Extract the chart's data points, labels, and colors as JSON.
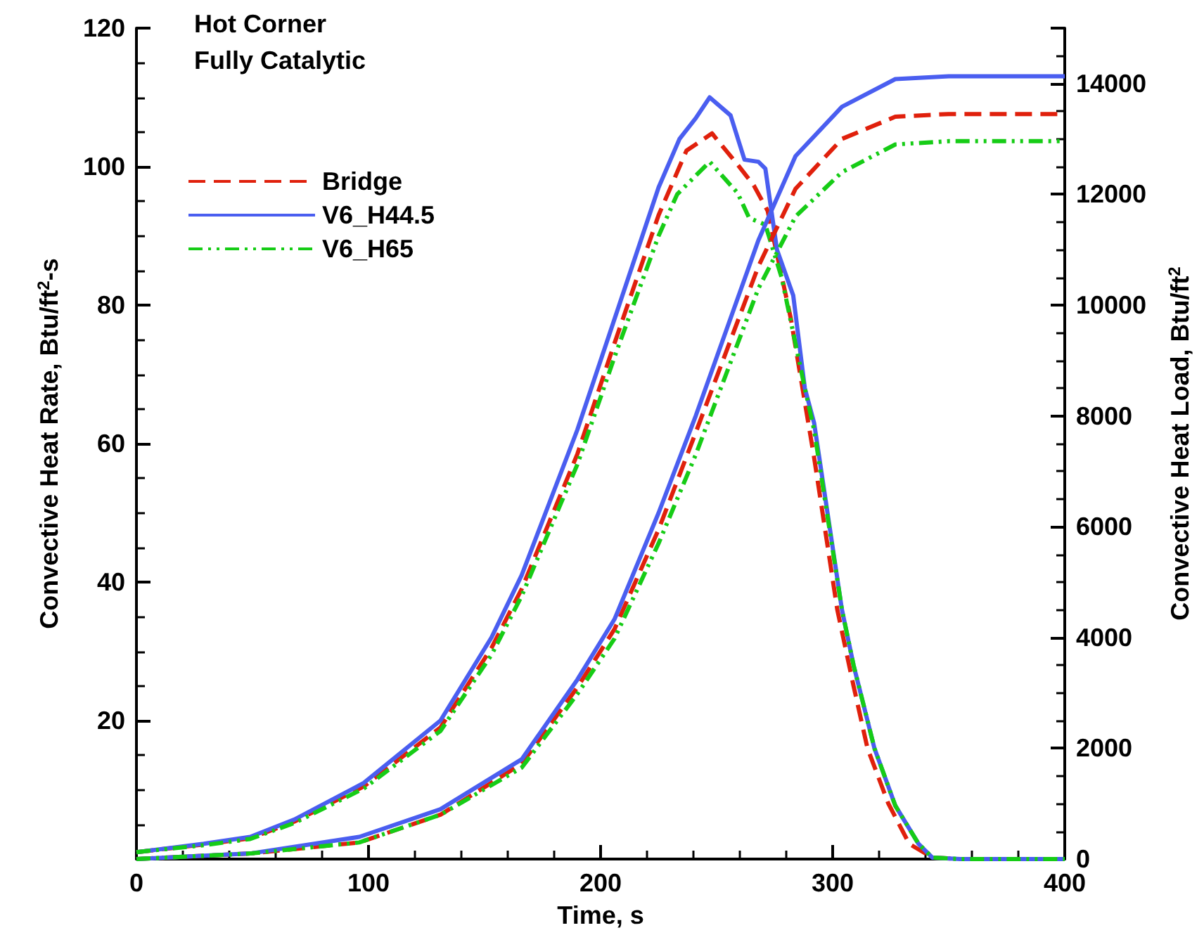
{
  "chart_data": {
    "type": "line",
    "xlabel": "Time, s",
    "ylabel": "Convective Heat Rate, Btu/ft$^{2}$-s",
    "y2label": "Convective Heat Load, Btu/ft$^{2}$",
    "annotations": [
      "Hot Corner",
      "Fully Catalytic"
    ],
    "xlim": [
      0,
      400
    ],
    "xticks": [
      0,
      100,
      200,
      300,
      400
    ],
    "ylim": [
      0,
      120
    ],
    "yticks": [
      {
        "value": 0,
        "label": null
      },
      20,
      40,
      60,
      80,
      100,
      120
    ],
    "y2lim": [
      0,
      15000
    ],
    "y2ticks": [
      0,
      2000,
      4000,
      6000,
      8000,
      10000,
      12000,
      14000
    ],
    "legend": "top left",
    "grid": false,
    "marker": "none",
    "series": [
      {
        "name": "Bridge",
        "color": "#e0200c",
        "line_style": "dashed",
        "x": [
          0,
          29,
          49,
          68,
          98,
          131,
          153,
          166,
          190,
          206,
          225,
          237,
          248,
          259,
          266,
          272,
          282,
          292,
          302,
          309,
          315,
          324,
          333,
          343,
          355,
          400
        ],
        "values": [
          1,
          2.1,
          3,
          5.4,
          10.5,
          19,
          30.5,
          39,
          58.5,
          74.5,
          93,
          102.3,
          104.8,
          100.3,
          97.3,
          93.6,
          78,
          58,
          36,
          25,
          16,
          8,
          2.2,
          0.2,
          0,
          0
        ]
      },
      {
        "name": "V6_H44.5",
        "color": "#4a5ef0",
        "line_style": "solid",
        "x": [
          0,
          29,
          49,
          68,
          98,
          131,
          153,
          166,
          190,
          206,
          225,
          234,
          241,
          247,
          256,
          262,
          268,
          271,
          276,
          283,
          288,
          292,
          304,
          309,
          318,
          327,
          337,
          343,
          355,
          400
        ],
        "values": [
          1,
          2.2,
          3.2,
          5.7,
          11,
          20,
          32,
          41,
          62,
          78,
          97,
          104,
          107,
          110,
          107.4,
          101,
          100.7,
          99.7,
          88,
          81.4,
          68,
          63,
          36,
          28,
          16,
          7.7,
          2.2,
          0.2,
          0,
          0
        ]
      },
      {
        "name": "V6_H65",
        "color": "#16cc16",
        "line_style": "dashdot",
        "x": [
          0,
          29,
          49,
          68,
          98,
          131,
          153,
          166,
          190,
          206,
          225,
          233,
          247,
          259,
          264,
          271,
          278,
          288,
          292,
          304,
          309,
          318,
          327,
          337,
          343,
          355,
          400
        ],
        "values": [
          1,
          2,
          2.9,
          5.2,
          10.2,
          18.5,
          29.5,
          38,
          57,
          72.5,
          90,
          96,
          100.7,
          96.2,
          92.6,
          91.6,
          84,
          68,
          62,
          36,
          28,
          16,
          7.7,
          2.2,
          0.2,
          0,
          0
        ]
      },
      {
        "color": "#e0200c",
        "line_style": "dashed",
        "axis": "y2",
        "x": [
          0,
          49,
          96,
          131,
          166,
          190,
          206,
          225,
          241,
          268,
          284,
          304,
          327,
          350,
          400
        ],
        "values": [
          0,
          100,
          300,
          800,
          1720,
          3100,
          4150,
          5950,
          7700,
          10700,
          12100,
          13000,
          13400,
          13450,
          13450
        ]
      },
      {
        "color": "#4a5ef0",
        "line_style": "solid",
        "axis": "y2",
        "x": [
          0,
          49,
          96,
          131,
          166,
          190,
          206,
          225,
          241,
          268,
          284,
          304,
          327,
          350,
          400
        ],
        "values": [
          0,
          100,
          400,
          900,
          1800,
          3240,
          4330,
          6250,
          8000,
          11170,
          12690,
          13580,
          14080,
          14130,
          14130
        ]
      },
      {
        "color": "#16cc16",
        "line_style": "dashdot",
        "axis": "y2",
        "x": [
          0,
          49,
          96,
          131,
          166,
          190,
          206,
          225,
          241,
          268,
          284,
          304,
          327,
          350,
          400
        ],
        "values": [
          0,
          100,
          300,
          800,
          1650,
          2980,
          3980,
          5700,
          7300,
          10300,
          11600,
          12400,
          12900,
          12960,
          12960
        ]
      }
    ]
  }
}
